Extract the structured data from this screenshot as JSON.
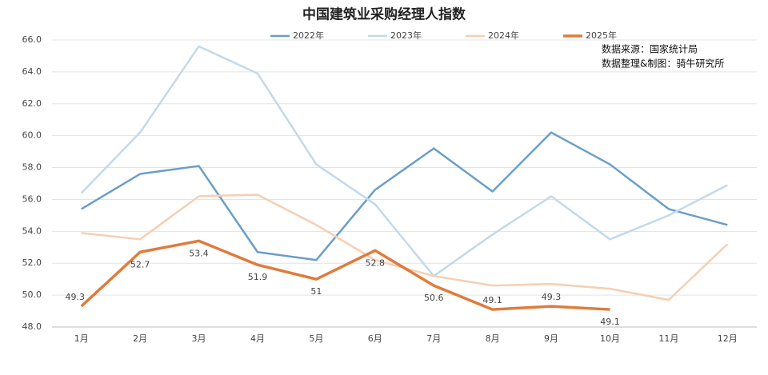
{
  "chart_data": {
    "type": "line",
    "title": "中国建筑业采购经理人指数",
    "annotations": [
      "数据来源：国家统计局",
      "数据整理&制图：骑牛研究所"
    ],
    "categories": [
      "1月",
      "2月",
      "3月",
      "4月",
      "5月",
      "6月",
      "7月",
      "8月",
      "9月",
      "10月",
      "11月",
      "12月"
    ],
    "series": [
      {
        "name": "2022年",
        "color": "#6a9ec8",
        "values": [
          55.4,
          57.6,
          58.1,
          52.7,
          52.2,
          56.6,
          59.2,
          56.5,
          60.2,
          58.2,
          55.4,
          54.4
        ]
      },
      {
        "name": "2023年",
        "color": "#c2d9ec",
        "values": [
          56.4,
          60.2,
          65.6,
          63.9,
          58.2,
          55.7,
          51.2,
          53.8,
          56.2,
          53.5,
          55.0,
          56.9
        ]
      },
      {
        "name": "2024年",
        "color": "#f5cfb3",
        "values": [
          53.9,
          53.5,
          56.2,
          56.3,
          54.4,
          52.2,
          51.2,
          50.6,
          50.7,
          50.4,
          49.7,
          53.2
        ]
      },
      {
        "name": "2025年",
        "color": "#e07b3c",
        "values": [
          49.3,
          52.7,
          53.4,
          51.9,
          51,
          52.8,
          50.6,
          49.1,
          49.3,
          49.1,
          null,
          null
        ],
        "data_labels": true
      }
    ],
    "ylim": [
      48,
      66
    ],
    "yticks": [
      {
        "value": 48,
        "label": "48.0"
      },
      {
        "value": 50,
        "label": "50.0"
      },
      {
        "value": 52,
        "label": "52.0"
      },
      {
        "value": 54,
        "label": "54.0"
      },
      {
        "value": 56,
        "label": "56.0"
      },
      {
        "value": 58,
        "label": "58.0"
      },
      {
        "value": 60,
        "label": "60.0"
      },
      {
        "value": 62,
        "label": "62.0"
      },
      {
        "value": 64,
        "label": "64.0"
      },
      {
        "value": 66,
        "label": "66.0"
      }
    ],
    "grid": true
  }
}
